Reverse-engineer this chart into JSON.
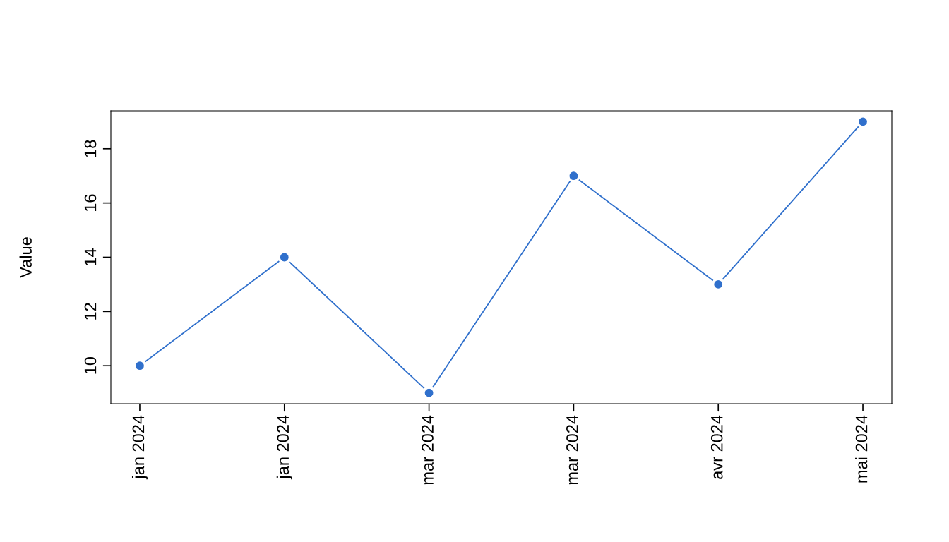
{
  "chart_data": {
    "type": "line",
    "ylabel": "Value",
    "categories": [
      "jan 2024",
      "jan 2024",
      "mar 2024",
      "mar 2024",
      "avr 2024",
      "mai 2024"
    ],
    "series": [
      {
        "color": "#3070cc",
        "values": [
          10,
          14,
          9,
          17,
          13,
          19
        ]
      }
    ],
    "ylim": [
      8.6,
      19.4
    ],
    "yticks": [
      10,
      12,
      14,
      16,
      18
    ],
    "grid": false,
    "marker": "circle",
    "line_style": "solid"
  }
}
